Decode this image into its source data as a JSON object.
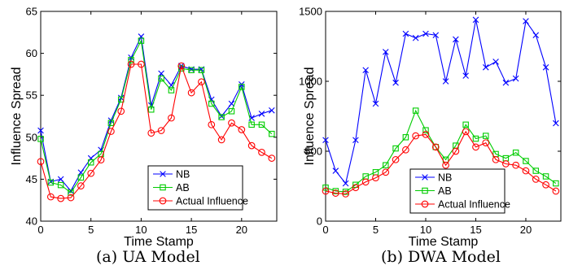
{
  "captions": [
    "(a)  UA Model",
    "(b)  DWA Model"
  ],
  "colors": {
    "NB": "#0000ff",
    "AB": "#00cc00",
    "Actual Influence": "#ff0000"
  },
  "chart_data": [
    {
      "type": "line",
      "xlabel": "Time Stamp",
      "ylabel": "Influence Spread",
      "xlim": [
        0,
        23.5
      ],
      "ylim": [
        40,
        65
      ],
      "xticks": [
        0,
        5,
        10,
        15,
        20
      ],
      "yticks": [
        40,
        45,
        50,
        55,
        60,
        65
      ],
      "legend_position": "lower-right",
      "x": [
        0,
        1,
        2,
        3,
        4,
        5,
        6,
        7,
        8,
        9,
        10,
        11,
        12,
        13,
        14,
        15,
        16,
        17,
        18,
        19,
        20,
        21,
        22,
        23
      ],
      "series": [
        {
          "name": "NB",
          "marker": "x",
          "values": [
            50.8,
            44.7,
            45.0,
            43.6,
            45.8,
            47.5,
            48.5,
            52.0,
            54.7,
            59.5,
            62.0,
            53.8,
            57.6,
            56.2,
            58.5,
            58.1,
            58.1,
            54.5,
            52.5,
            54.0,
            56.3,
            52.3,
            52.8,
            53.2
          ]
        },
        {
          "name": "AB",
          "marker": "square",
          "values": [
            49.8,
            44.6,
            44.3,
            43.4,
            45.2,
            47.0,
            48.0,
            51.7,
            54.5,
            59.2,
            61.5,
            53.3,
            57.0,
            55.6,
            58.2,
            58.0,
            58.0,
            54.0,
            52.4,
            53.1,
            56.0,
            51.5,
            51.5,
            50.4
          ]
        },
        {
          "name": "Actual Influence",
          "marker": "circle",
          "values": [
            47.1,
            42.9,
            42.7,
            42.8,
            44.2,
            45.7,
            47.3,
            50.7,
            53.1,
            58.7,
            58.7,
            50.5,
            50.8,
            52.3,
            58.5,
            55.3,
            56.6,
            51.5,
            49.7,
            51.7,
            50.9,
            49.0,
            48.2,
            47.5
          ]
        }
      ]
    },
    {
      "type": "line",
      "xlabel": "Time Stamp",
      "ylabel": "Influence Spread",
      "xlim": [
        0,
        23.5
      ],
      "ylim": [
        0,
        1500
      ],
      "xticks": [
        0,
        5,
        10,
        15,
        20
      ],
      "yticks": [
        0,
        500,
        1000,
        1500
      ],
      "legend_position": "lower-left",
      "x": [
        0,
        1,
        2,
        3,
        4,
        5,
        6,
        7,
        8,
        9,
        10,
        11,
        12,
        13,
        14,
        15,
        16,
        17,
        18,
        19,
        20,
        21,
        22,
        23
      ],
      "series": [
        {
          "name": "NB",
          "marker": "x",
          "values": [
            580,
            360,
            270,
            580,
            1080,
            840,
            1210,
            990,
            1340,
            1310,
            1340,
            1330,
            1000,
            1300,
            1040,
            1440,
            1100,
            1140,
            990,
            1020,
            1430,
            1330,
            1100,
            700
          ]
        },
        {
          "name": "AB",
          "marker": "square",
          "values": [
            240,
            215,
            210,
            260,
            320,
            350,
            400,
            520,
            600,
            790,
            650,
            530,
            440,
            540,
            690,
            590,
            610,
            480,
            450,
            490,
            430,
            360,
            320,
            270
          ]
        },
        {
          "name": "Actual Influence",
          "marker": "circle",
          "values": [
            215,
            200,
            195,
            240,
            280,
            310,
            350,
            440,
            510,
            610,
            620,
            530,
            400,
            500,
            640,
            530,
            560,
            440,
            410,
            400,
            360,
            300,
            260,
            215
          ]
        }
      ]
    }
  ]
}
